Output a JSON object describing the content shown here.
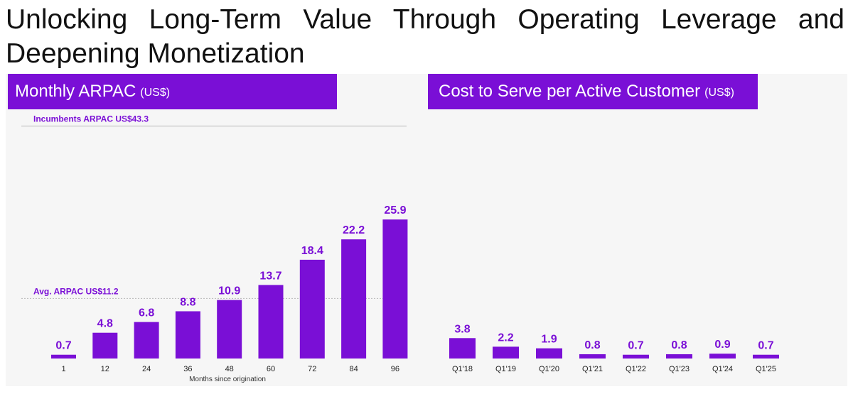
{
  "title": "Unlocking Long-Term Value Through Operating Leverage and Deepening Monetization",
  "colors": {
    "bar": "#7a0fd6",
    "header_bg": "#7a0fd6",
    "panel_bg": "#f6f6f6"
  },
  "chart_data": [
    {
      "type": "bar",
      "title": "Monthly ARPAC",
      "unit": "(US$)",
      "xlabel": "Months since origination",
      "categories": [
        "1",
        "12",
        "24",
        "36",
        "48",
        "60",
        "72",
        "84",
        "96"
      ],
      "values": [
        0.7,
        4.8,
        6.8,
        8.8,
        10.9,
        13.7,
        18.4,
        22.2,
        25.9
      ],
      "value_labels": [
        "0.7",
        "4.8",
        "6.8",
        "8.8",
        "10.9",
        "13.7",
        "18.4",
        "22.2",
        "25.9"
      ],
      "reference_lines": [
        {
          "label": "Incumbents ARPAC US$43.3",
          "value": 43.3
        },
        {
          "label": "Avg. ARPAC US$11.2",
          "value": 11.2
        }
      ]
    },
    {
      "type": "bar",
      "title": "Cost to Serve per Active Customer",
      "unit": "(US$)",
      "categories": [
        "Q1'18",
        "Q1'19",
        "Q1'20",
        "Q1'21",
        "Q1'22",
        "Q1'23",
        "Q1'24",
        "Q1'25"
      ],
      "values": [
        3.8,
        2.2,
        1.9,
        0.8,
        0.7,
        0.8,
        0.9,
        0.7
      ],
      "value_labels": [
        "3.8",
        "2.2",
        "1.9",
        "0.8",
        "0.7",
        "0.8",
        "0.9",
        "0.7"
      ]
    }
  ]
}
